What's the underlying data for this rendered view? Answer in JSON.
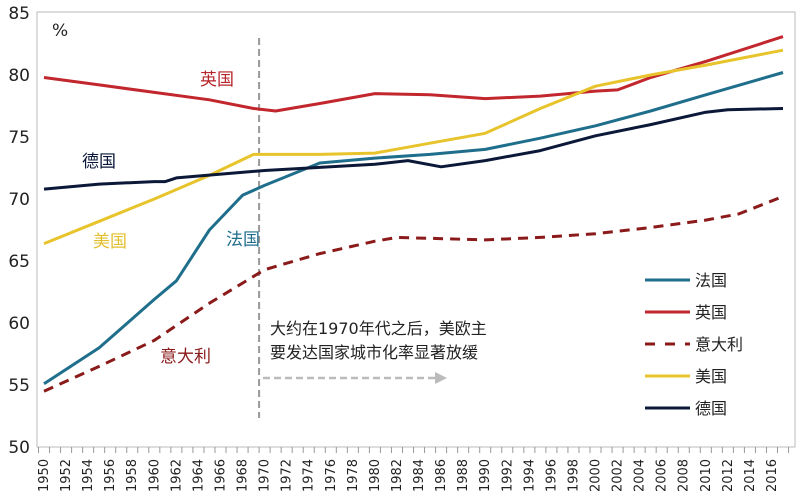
{
  "chart_data": {
    "type": "line",
    "title": "",
    "xlabel": "",
    "ylabel": "%",
    "xlim": [
      1950,
      2017
    ],
    "ylim": [
      50,
      85
    ],
    "yticks": [
      50,
      55,
      60,
      65,
      70,
      75,
      80,
      85
    ],
    "xticks": [
      "1950",
      "1952",
      "1954",
      "1956",
      "1958",
      "1960",
      "1962",
      "1964",
      "1966",
      "1968",
      "1970",
      "1972",
      "1974",
      "1976",
      "1978",
      "1980",
      "1982",
      "1984",
      "1986",
      "1988",
      "1990",
      "1992",
      "1994",
      "1996",
      "1998",
      "2000",
      "2002",
      "2004",
      "2006",
      "2008",
      "2010",
      "2012",
      "2014",
      "2016"
    ],
    "grid": false,
    "legend": "right",
    "series": [
      {
        "name": "法国",
        "color": "#1f6e8c",
        "dash": false,
        "points": [
          [
            1950,
            55.1
          ],
          [
            1955,
            58.0
          ],
          [
            1960,
            61.9
          ],
          [
            1962,
            63.4
          ],
          [
            1965,
            67.5
          ],
          [
            1968,
            70.3
          ],
          [
            1970,
            71.1
          ],
          [
            1975,
            72.9
          ],
          [
            1980,
            73.3
          ],
          [
            1985,
            73.6
          ],
          [
            1990,
            74.0
          ],
          [
            1995,
            74.9
          ],
          [
            2000,
            75.9
          ],
          [
            2005,
            77.1
          ],
          [
            2010,
            78.4
          ],
          [
            2017,
            80.2
          ]
        ]
      },
      {
        "name": "英国",
        "color": "#c1272d",
        "dash": false,
        "points": [
          [
            1950,
            79.8
          ],
          [
            1955,
            79.2
          ],
          [
            1960,
            78.6
          ],
          [
            1965,
            78.0
          ],
          [
            1969,
            77.3
          ],
          [
            1971,
            77.1
          ],
          [
            1975,
            77.7
          ],
          [
            1980,
            78.5
          ],
          [
            1985,
            78.4
          ],
          [
            1990,
            78.1
          ],
          [
            1995,
            78.3
          ],
          [
            2000,
            78.7
          ],
          [
            2002,
            78.8
          ],
          [
            2005,
            79.8
          ],
          [
            2010,
            81.1
          ],
          [
            2017,
            83.1
          ]
        ]
      },
      {
        "name": "意大利",
        "color": "#8b1a1a",
        "dash": true,
        "points": [
          [
            1950,
            54.5
          ],
          [
            1955,
            56.5
          ],
          [
            1960,
            58.6
          ],
          [
            1965,
            61.6
          ],
          [
            1970,
            64.3
          ],
          [
            1975,
            65.6
          ],
          [
            1980,
            66.6
          ],
          [
            1982,
            66.9
          ],
          [
            1990,
            66.7
          ],
          [
            1995,
            66.9
          ],
          [
            2000,
            67.2
          ],
          [
            2005,
            67.7
          ],
          [
            2010,
            68.3
          ],
          [
            2013,
            68.8
          ],
          [
            2017,
            70.2
          ]
        ]
      },
      {
        "name": "美国",
        "color": "#e8c42c",
        "dash": false,
        "points": [
          [
            1950,
            66.4
          ],
          [
            1955,
            68.2
          ],
          [
            1960,
            70.0
          ],
          [
            1965,
            71.9
          ],
          [
            1969,
            73.6
          ],
          [
            1975,
            73.6
          ],
          [
            1980,
            73.7
          ],
          [
            1985,
            74.5
          ],
          [
            1990,
            75.3
          ],
          [
            1995,
            77.3
          ],
          [
            2000,
            79.1
          ],
          [
            2005,
            80.0
          ],
          [
            2010,
            80.8
          ],
          [
            2017,
            82.0
          ]
        ]
      },
      {
        "name": "德国",
        "color": "#0b1838",
        "dash": false,
        "points": [
          [
            1950,
            70.8
          ],
          [
            1955,
            71.2
          ],
          [
            1960,
            71.4
          ],
          [
            1961,
            71.4
          ],
          [
            1962,
            71.7
          ],
          [
            1970,
            72.3
          ],
          [
            1980,
            72.8
          ],
          [
            1983,
            73.1
          ],
          [
            1986,
            72.6
          ],
          [
            1990,
            73.1
          ],
          [
            1995,
            73.9
          ],
          [
            2000,
            75.1
          ],
          [
            2005,
            76.0
          ],
          [
            2010,
            77.0
          ],
          [
            2012,
            77.2
          ],
          [
            2017,
            77.3
          ]
        ]
      }
    ],
    "inline_labels": [
      "英国",
      "德国",
      "美国",
      "法国",
      "意大利"
    ],
    "annotation": {
      "line1": "大约在1970年代之后，美欧主",
      "line2": "要发达国家城市化率显著放缓",
      "vline_year": 1969.5
    }
  }
}
